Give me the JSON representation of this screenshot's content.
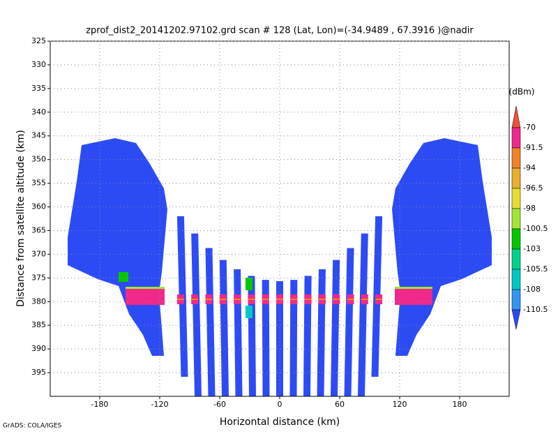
{
  "chart_data": {
    "type": "shaded",
    "title": "zprof_dist2_20141202.97102.grd  scan # 128  (Lat, Lon)=(-34.9489 , 67.3916 )@nadir",
    "x_label": "Horizontal distance (km)",
    "y_label": "Distance from satellite altitude (km)",
    "xlim": [
      -229.5,
      229.5
    ],
    "xticks": [
      -180,
      -120,
      -60,
      0,
      60,
      120,
      180
    ],
    "ylim": [
      400,
      325
    ],
    "yticks": [
      325,
      330,
      335,
      340,
      345,
      350,
      355,
      360,
      365,
      370,
      375,
      380,
      385,
      390,
      395
    ],
    "grid": true,
    "colorbar": {
      "unit": "(dBm)",
      "levels": [
        -70,
        -91.5,
        -94,
        -96.5,
        -98,
        -100.5,
        -103,
        -105.5,
        -108,
        -110.5
      ],
      "colors": [
        "#f0503c",
        "#f0288c",
        "#f08228",
        "#e6af2d",
        "#e6dc32",
        "#a0e632",
        "#00c800",
        "#00d28c",
        "#00c8c8",
        "#3296f0",
        "#2d4bf5"
      ]
    },
    "footer": "GrADS: COLA/IGES"
  }
}
